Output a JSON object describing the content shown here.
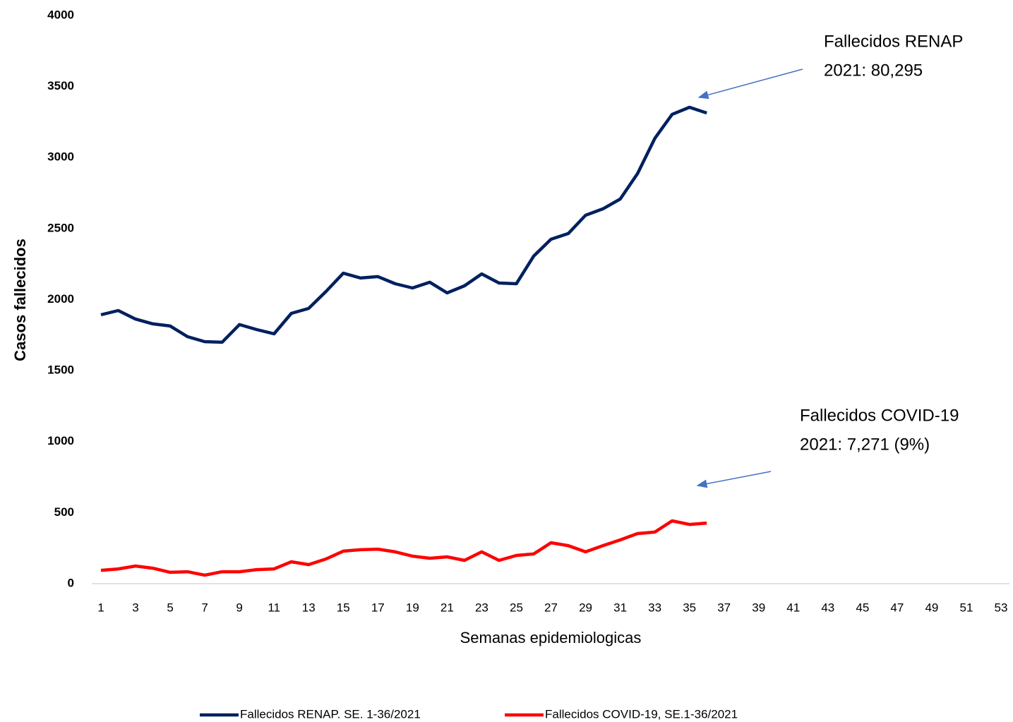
{
  "chart_data": {
    "type": "line",
    "x_label": "Semanas epidemiologicas",
    "y_label": "Casos fallecidos",
    "categories": [
      1,
      null,
      3,
      null,
      5,
      null,
      7,
      null,
      9,
      null,
      11,
      null,
      13,
      null,
      15,
      null,
      17,
      null,
      19,
      null,
      21,
      null,
      23,
      null,
      25,
      null,
      27,
      null,
      29,
      null,
      31,
      null,
      33,
      null,
      35,
      null,
      37,
      null,
      39,
      null,
      41,
      null,
      43,
      null,
      45,
      null,
      47,
      null,
      49,
      null,
      51,
      null,
      53
    ],
    "series": [
      {
        "name": "Fallecidos RENAP. SE. 1-36/2021",
        "color": "#002060",
        "values": [
          1893,
          1923,
          1863,
          1829,
          1814,
          1739,
          1704,
          1700,
          1824,
          1789,
          1759,
          1903,
          1938,
          2057,
          2186,
          2152,
          2162,
          2112,
          2082,
          2122,
          2047,
          2097,
          2181,
          2117,
          2112,
          2306,
          2425,
          2465,
          2594,
          2639,
          2708,
          2887,
          3135,
          3304,
          3354,
          3314,
          null,
          null,
          null,
          null,
          null,
          null,
          null,
          null,
          null,
          null,
          null,
          null,
          null,
          null,
          null,
          null,
          null
        ]
      },
      {
        "name": "Fallecidos COVID-19, SE.1-36/2021",
        "color": "#ff0000",
        "values": [
          94,
          104,
          124,
          109,
          80,
          84,
          60,
          84,
          84,
          99,
          104,
          154,
          134,
          174,
          229,
          239,
          243,
          224,
          194,
          179,
          189,
          164,
          224,
          164,
          199,
          209,
          288,
          268,
          224,
          268,
          308,
          353,
          363,
          442,
          417,
          427,
          null,
          null,
          null,
          null,
          null,
          null,
          null,
          null,
          null,
          null,
          null,
          null,
          null,
          null,
          null,
          null,
          null
        ]
      }
    ],
    "ylim": [
      0,
      4000
    ],
    "yticks": [
      0,
      500,
      1000,
      1500,
      2000,
      2500,
      3000,
      3500,
      4000
    ],
    "grid": false,
    "legend": "bottom",
    "annotations": [
      {
        "text": [
          "Fallecidos RENAP",
          "2021: 80,295"
        ]
      },
      {
        "text": [
          "Fallecidos COVID-19",
          "2021: 7,271 (9%)"
        ]
      }
    ]
  }
}
